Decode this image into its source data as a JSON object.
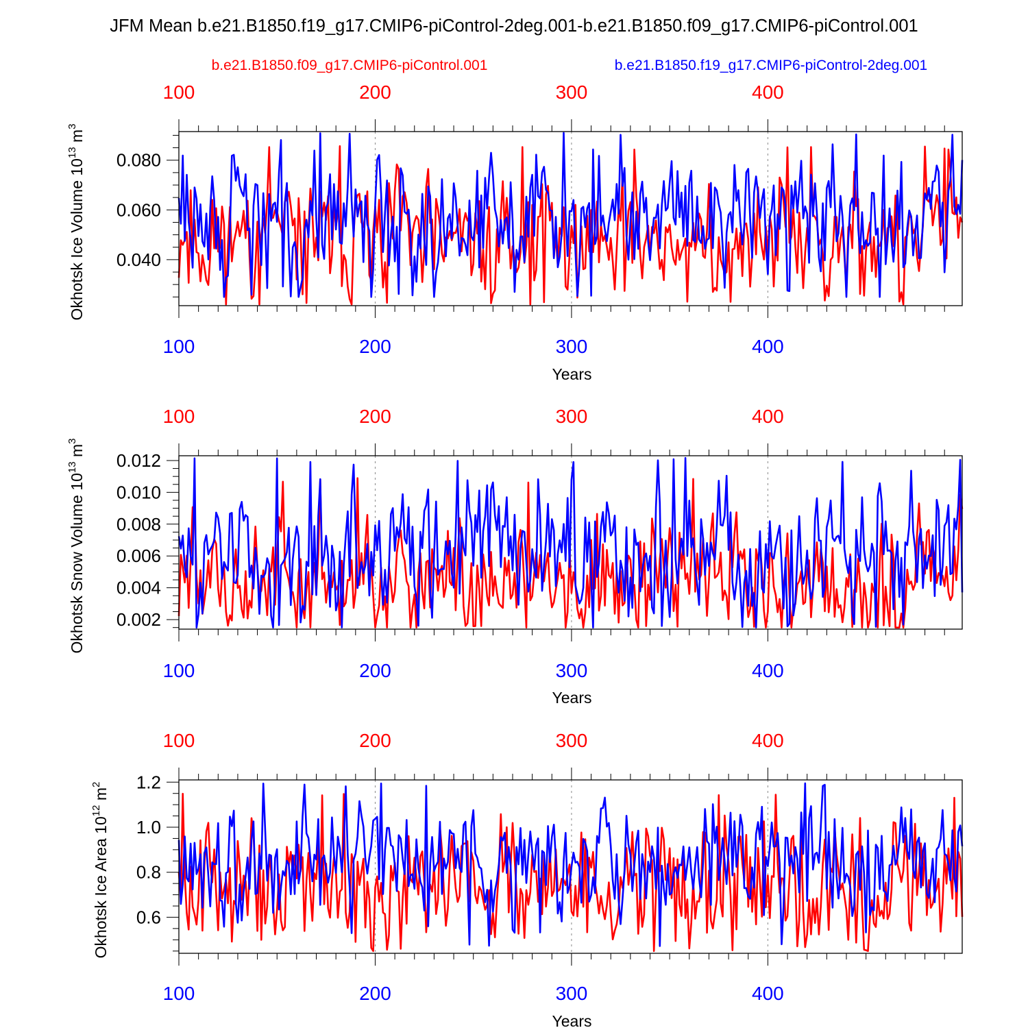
{
  "title": "JFM Mean b.e21.B1850.f19_g17.CMIP6-piControl-2deg.001-b.e21.B1850.f09_g17.CMIP6-piControl.001",
  "colors": {
    "red": "#ff0000",
    "blue": "#0000ff",
    "axis": "#000000",
    "grid": "#888888"
  },
  "legend": {
    "red": "b.e21.B1850.f09_g17.CMIP6-piControl.001",
    "blue": "b.e21.B1850.f19_g17.CMIP6-piControl-2deg.001"
  },
  "chart_data": [
    {
      "type": "line",
      "ylabel": "Okhotsk Ice Volume",
      "units": {
        "base": "10",
        "exp": "13",
        "unit": "m",
        "unit_exp": "3"
      },
      "xlabel": "Years",
      "xlim": [
        100,
        499
      ],
      "ylim": [
        0.0215,
        0.0915
      ],
      "xticks": [
        "100",
        "200",
        "300",
        "400"
      ],
      "yticks": [
        "0.040",
        "0.060",
        "0.080"
      ],
      "series": [
        {
          "name": "b.e21.B1850.f09_g17.CMIP6-piControl.001",
          "color": "red",
          "mean": 0.048,
          "amp": 0.011,
          "min": 0.022,
          "max": 0.086,
          "seed": 11
        },
        {
          "name": "b.e21.B1850.f19_g17.CMIP6-piControl-2deg.001",
          "color": "blue",
          "mean": 0.056,
          "amp": 0.012,
          "min": 0.025,
          "max": 0.091,
          "seed": 29
        }
      ]
    },
    {
      "type": "line",
      "ylabel": "Okhotsk Snow Volume",
      "units": {
        "base": "10",
        "exp": "13",
        "unit": "m",
        "unit_exp": "3"
      },
      "xlabel": "Years",
      "xlim": [
        100,
        499
      ],
      "ylim": [
        0.0014,
        0.0123
      ],
      "xticks": [
        "100",
        "200",
        "300",
        "400"
      ],
      "yticks": [
        "0.002",
        "0.004",
        "0.006",
        "0.008",
        "0.010",
        "0.012"
      ],
      "series": [
        {
          "name": "b.e21.B1850.f09_g17.CMIP6-piControl.001",
          "color": "red",
          "mean": 0.0047,
          "amp": 0.0016,
          "min": 0.0015,
          "max": 0.0109,
          "seed": 47
        },
        {
          "name": "b.e21.B1850.f19_g17.CMIP6-piControl-2deg.001",
          "color": "blue",
          "mean": 0.0063,
          "amp": 0.0019,
          "min": 0.0015,
          "max": 0.0122,
          "seed": 83
        }
      ]
    },
    {
      "type": "line",
      "ylabel": "Okhotsk Ice Area",
      "units": {
        "base": "10",
        "exp": "12",
        "unit": "m",
        "unit_exp": "2"
      },
      "xlabel": "Years",
      "xlim": [
        100,
        499
      ],
      "ylim": [
        0.44,
        1.21
      ],
      "xticks": [
        "100",
        "200",
        "300",
        "400"
      ],
      "yticks": [
        "0.6",
        "0.8",
        "1.0",
        "1.2"
      ],
      "series": [
        {
          "name": "b.e21.B1850.f09_g17.CMIP6-piControl.001",
          "color": "red",
          "mean": 0.75,
          "amp": 0.12,
          "min": 0.45,
          "max": 1.15,
          "seed": 101
        },
        {
          "name": "b.e21.B1850.f19_g17.CMIP6-piControl-2deg.001",
          "color": "blue",
          "mean": 0.83,
          "amp": 0.12,
          "min": 0.47,
          "max": 1.2,
          "seed": 149
        }
      ]
    }
  ]
}
